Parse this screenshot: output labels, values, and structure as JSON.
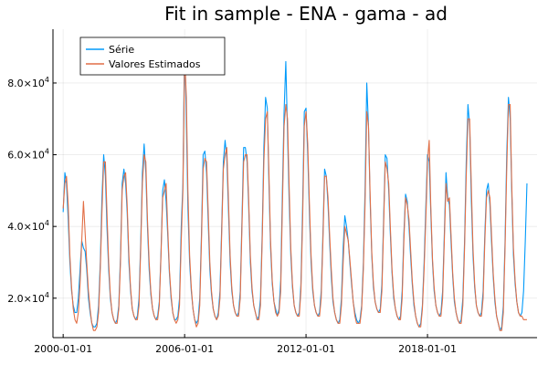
{
  "chart_data": {
    "type": "line",
    "title": "Fit in sample - ENA - gama - ad",
    "xlabel": "",
    "ylabel": "",
    "x_start": "2000-01",
    "x_end": "2022-12",
    "x_frequency": "monthly",
    "xlim": [
      "1999-07-01",
      "2023-06-01"
    ],
    "ylim": [
      9000,
      95000
    ],
    "x_ticks": [
      "2000-01-01",
      "2006-01-01",
      "2012-01-01",
      "2018-01-01"
    ],
    "y_ticks": [
      {
        "value": 20000,
        "mant": "2.0",
        "exp": "4"
      },
      {
        "value": 40000,
        "mant": "4.0",
        "exp": "4"
      },
      {
        "value": 60000,
        "mant": "6.0",
        "exp": "4"
      },
      {
        "value": 80000,
        "mant": "8.0",
        "exp": "4"
      }
    ],
    "tick_label_sep": "×10",
    "grid": true,
    "legend_position": "top-left",
    "series": [
      {
        "name": "Série",
        "color": "#009AFA",
        "values": [
          44000,
          55000,
          52000,
          42000,
          30000,
          22000,
          18000,
          16000,
          16000,
          20000,
          28000,
          36000,
          34000,
          33000,
          28000,
          20000,
          16000,
          13000,
          12000,
          12000,
          13000,
          18000,
          30000,
          48000,
          60000,
          54000,
          40000,
          28000,
          20000,
          16000,
          14000,
          13000,
          14000,
          18000,
          32000,
          52000,
          56000,
          52000,
          44000,
          30000,
          22000,
          17000,
          15000,
          14000,
          15000,
          20000,
          36000,
          55000,
          63000,
          55000,
          40000,
          28000,
          21000,
          17000,
          15000,
          14000,
          15000,
          19000,
          33000,
          50000,
          53000,
          47000,
          38000,
          27000,
          20000,
          16000,
          14000,
          14000,
          15000,
          20000,
          40000,
          52000,
          92000,
          70000,
          45000,
          30000,
          22000,
          17000,
          14000,
          13000,
          14000,
          20000,
          38000,
          60000,
          61000,
          55000,
          42000,
          28000,
          21000,
          17000,
          15000,
          14000,
          16000,
          22000,
          40000,
          58000,
          64000,
          59000,
          45000,
          30000,
          22000,
          18000,
          16000,
          15000,
          16000,
          22000,
          42000,
          62000,
          62000,
          58000,
          46000,
          30000,
          22000,
          18000,
          16000,
          14000,
          15000,
          20000,
          38000,
          62000,
          76000,
          73000,
          53000,
          34000,
          24000,
          19000,
          17000,
          15000,
          17000,
          25000,
          50000,
          72000,
          86000,
          66000,
          48000,
          32000,
          23000,
          18000,
          16000,
          15000,
          16000,
          24000,
          46000,
          72000,
          73000,
          60000,
          44000,
          30000,
          22000,
          18000,
          16000,
          15000,
          16000,
          22000,
          38000,
          56000,
          54000,
          46000,
          36000,
          26000,
          19000,
          16000,
          14000,
          13000,
          14000,
          20000,
          34000,
          43000,
          40000,
          36000,
          30000,
          24000,
          19000,
          16000,
          14000,
          13000,
          14000,
          18000,
          30000,
          50000,
          80000,
          68000,
          48000,
          32000,
          23000,
          19000,
          17000,
          16000,
          17000,
          24000,
          42000,
          60000,
          59000,
          50000,
          38000,
          27000,
          20000,
          17000,
          15000,
          14000,
          15000,
          22000,
          38000,
          49000,
          47000,
          40000,
          32000,
          24000,
          18000,
          15000,
          13000,
          12000,
          13000,
          18000,
          30000,
          45000,
          60000,
          58000,
          44000,
          30000,
          22000,
          18000,
          16000,
          15000,
          16000,
          22000,
          38000,
          55000,
          48000,
          46000,
          36000,
          26000,
          19000,
          16000,
          14000,
          13000,
          14000,
          20000,
          36000,
          58000,
          74000,
          68000,
          48000,
          32000,
          23000,
          18000,
          16000,
          15000,
          16000,
          22000,
          38000,
          50000,
          52000,
          46000,
          36000,
          26000,
          19000,
          15000,
          13000,
          11000,
          12000,
          18000,
          36000,
          60000,
          76000,
          70000,
          50000,
          32000,
          24000,
          19000,
          16000,
          15000,
          16000,
          22000,
          36000,
          52000
        ]
      },
      {
        "name": "Valores Estimados",
        "color": "#E26F46",
        "values": [
          45000,
          52000,
          54000,
          46000,
          32000,
          23000,
          17000,
          14000,
          13000,
          16000,
          24000,
          36000,
          47000,
          38000,
          30000,
          22000,
          17000,
          13000,
          11000,
          11000,
          12000,
          16000,
          28000,
          44000,
          58000,
          58000,
          44000,
          30000,
          21000,
          16000,
          14000,
          13000,
          13000,
          17000,
          30000,
          50000,
          54000,
          55000,
          46000,
          32000,
          23000,
          17000,
          15000,
          14000,
          14000,
          18000,
          34000,
          52000,
          60000,
          58000,
          42000,
          30000,
          22000,
          17000,
          15000,
          14000,
          14000,
          18000,
          32000,
          48000,
          50000,
          52000,
          40000,
          28000,
          21000,
          16000,
          14000,
          13000,
          14000,
          18000,
          36000,
          50000,
          88000,
          76000,
          50000,
          32000,
          23000,
          17000,
          14000,
          12000,
          13000,
          18000,
          36000,
          56000,
          59000,
          58000,
          45000,
          30000,
          22000,
          17000,
          15000,
          14000,
          15000,
          20000,
          38000,
          56000,
          60000,
          62000,
          48000,
          32000,
          23000,
          18000,
          16000,
          15000,
          15000,
          20000,
          40000,
          58000,
          60000,
          60000,
          48000,
          32000,
          23000,
          18000,
          16000,
          14000,
          14000,
          18000,
          36000,
          58000,
          70000,
          72000,
          56000,
          36000,
          25000,
          19000,
          16000,
          15000,
          16000,
          22000,
          46000,
          68000,
          74000,
          70000,
          52000,
          34000,
          24000,
          18000,
          16000,
          15000,
          15000,
          22000,
          42000,
          68000,
          72000,
          63000,
          47000,
          32000,
          23000,
          18000,
          16000,
          15000,
          15000,
          20000,
          36000,
          54000,
          54000,
          48000,
          38000,
          28000,
          20000,
          16000,
          14000,
          13000,
          13000,
          18000,
          30000,
          40000,
          38000,
          36000,
          31000,
          25000,
          19000,
          15000,
          13000,
          13000,
          13000,
          17000,
          28000,
          46000,
          72000,
          68000,
          50000,
          33000,
          24000,
          19000,
          17000,
          16000,
          16000,
          22000,
          40000,
          58000,
          56000,
          52000,
          40000,
          28000,
          21000,
          17000,
          15000,
          14000,
          14000,
          20000,
          36000,
          48000,
          46000,
          42000,
          34000,
          25000,
          19000,
          15000,
          13000,
          12000,
          12000,
          17000,
          28000,
          42000,
          58000,
          64000,
          46000,
          31000,
          23000,
          18000,
          16000,
          15000,
          15000,
          20000,
          36000,
          52000,
          47000,
          48000,
          38000,
          27000,
          20000,
          16000,
          14000,
          13000,
          13000,
          18000,
          34000,
          54000,
          70000,
          70000,
          52000,
          34000,
          24000,
          18000,
          16000,
          15000,
          15000,
          20000,
          36000,
          48000,
          50000,
          48000,
          38000,
          27000,
          20000,
          15000,
          13000,
          11000,
          11000,
          16000,
          34000,
          56000,
          74000,
          74000,
          52000,
          34000,
          25000,
          19000,
          16000,
          15000,
          15000,
          14000,
          14000,
          14000
        ]
      }
    ]
  }
}
